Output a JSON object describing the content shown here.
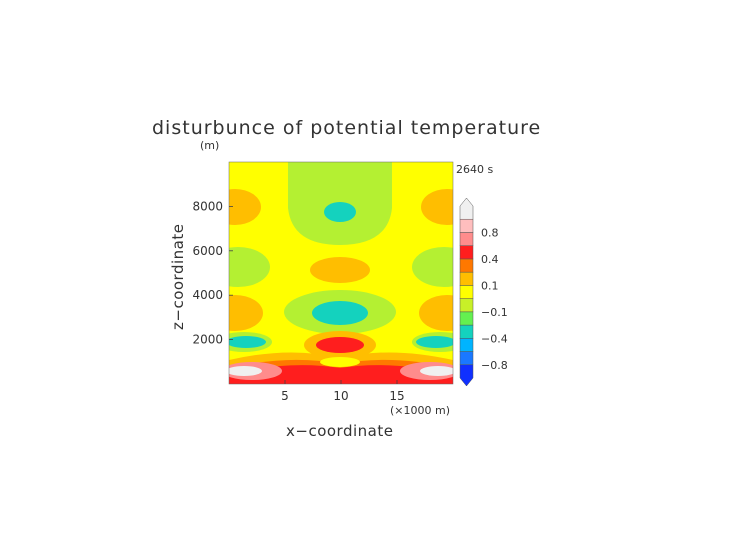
{
  "chart_data": {
    "type": "heatmap",
    "title": "disturbunce of potential temperature",
    "y_unit": "(m)",
    "time_label": "2640 s",
    "xlabel": "x−coordinate",
    "ylabel": "z−coordinate",
    "x_unit": "(×1000 m)",
    "xlim": [
      0,
      20
    ],
    "ylim": [
      0,
      10000
    ],
    "x_ticks": [
      5,
      10,
      15
    ],
    "y_ticks": [
      2000,
      4000,
      6000,
      8000
    ],
    "colorbar": {
      "levels": [
        -1.0,
        -0.8,
        -0.6,
        -0.4,
        -0.2,
        -0.1,
        0,
        0.1,
        0.2,
        0.4,
        0.6,
        0.8,
        1.0
      ],
      "colors": [
        "#1030ff",
        "#1a78ff",
        "#00b4ff",
        "#14d2be",
        "#64f050",
        "#c8f028",
        "#ffff00",
        "#ffbe00",
        "#ff7800",
        "#ff1e1e",
        "#ff8c8c",
        "#ffbebe",
        "#f0f0f0"
      ],
      "tick_labels": [
        "−0.8",
        "−0.4",
        "−0.1",
        "0.1",
        "0.4",
        "0.8"
      ],
      "tick_values": [
        -0.8,
        -0.4,
        -0.1,
        0.1,
        0.4,
        0.8
      ]
    }
  }
}
